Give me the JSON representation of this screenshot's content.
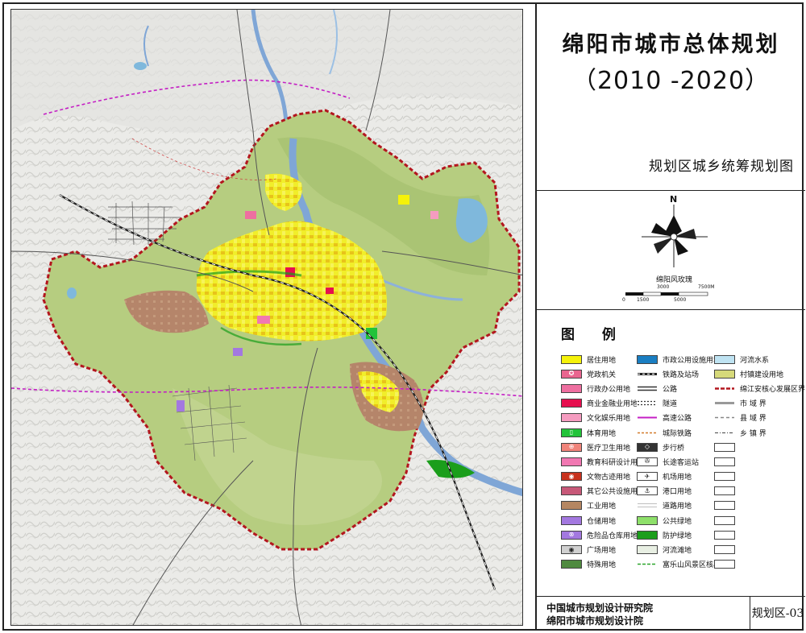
{
  "title": "绵阳市城市总体规划",
  "years": "（2010 -2020）",
  "subtitle": "规划区城乡统筹规划图",
  "north": "N",
  "wind_rose_label": "绵阳风玫瑰",
  "scale_labels": [
    "0",
    "1500",
    "3000",
    "5000",
    "7500M"
  ],
  "legend_title": "图 例",
  "legend": [
    {
      "label": "居住用地",
      "color": "#f5f20a",
      "icon": "fill"
    },
    {
      "label": "党政机关",
      "color": "#e9658f",
      "icon": "star-circle-icon"
    },
    {
      "label": "行政办公用地",
      "color": "#ee6fa0",
      "icon": "fill"
    },
    {
      "label": "商业金融业用地",
      "color": "#e60f4f",
      "icon": "fill"
    },
    {
      "label": "文化娱乐用地",
      "color": "#f59cc0",
      "icon": "fill"
    },
    {
      "label": "体育用地",
      "color": "#22c33a",
      "icon": "stadium-icon"
    },
    {
      "label": "医疗卫生用地",
      "color": "#f0837a",
      "icon": "cross-circle-icon"
    },
    {
      "label": "教育科研设计用地",
      "color": "#f178b2",
      "icon": "fill"
    },
    {
      "label": "文物古迹用地",
      "color": "#c8321e",
      "icon": "heritage-icon"
    },
    {
      "label": "其它公共设施用地",
      "color": "#c75878",
      "icon": "fill"
    },
    {
      "label": "工业用地",
      "color": "#b58661",
      "icon": "fill"
    },
    {
      "label": "仓储用地",
      "color": "#a378e0",
      "icon": "fill"
    },
    {
      "label": "危险品仓库用地",
      "color": "#a378e0",
      "icon": "x-circle-icon"
    },
    {
      "label": "广场用地",
      "color": "#d0d0d0",
      "icon": "dot-circle-icon"
    },
    {
      "label": "特殊用地",
      "color": "#4f8a3f",
      "icon": "fill"
    },
    {
      "label": "市政公用设施用地",
      "color": "#1a7ec2",
      "icon": "fill"
    },
    {
      "label": "铁路及站场",
      "color": "#333333",
      "icon": "railway-icon"
    },
    {
      "label": "公路",
      "color": "#333333",
      "icon": "road-line-icon"
    },
    {
      "label": "隧道",
      "color": "#333333",
      "icon": "tunnel-icon"
    },
    {
      "label": "高速公路",
      "color": "#c41fc4",
      "icon": "expressway-icon"
    },
    {
      "label": "城际铁路",
      "color": "#d27a2a",
      "icon": "intercity-rail-icon"
    },
    {
      "label": "步行桥",
      "color": "#333333",
      "icon": "footbridge-icon"
    },
    {
      "label": "长途客运站",
      "color": "#ffffff",
      "icon": "bus-station-icon"
    },
    {
      "label": "机场用地",
      "color": "#ffffff",
      "icon": "airport-icon"
    },
    {
      "label": "港口用地",
      "color": "#ffffff",
      "icon": "port-icon"
    },
    {
      "label": "道路用地",
      "color": "#ffffff",
      "icon": "road-land-icon"
    },
    {
      "label": "公共绿地",
      "color": "#8ee06a",
      "icon": "fill"
    },
    {
      "label": "防护绿地",
      "color": "#1b9e1b",
      "icon": "fill"
    },
    {
      "label": "河流滩地",
      "color": "#e8efe3",
      "icon": "fill"
    },
    {
      "label": "富乐山风景区核心区界",
      "color": "#2aa52a",
      "icon": "scenic-boundary-icon"
    },
    {
      "label": "河流水系",
      "color": "#bfe3f2",
      "icon": "fill"
    },
    {
      "label": "村镇建设用地",
      "color": "#d6d97a",
      "icon": "fill"
    },
    {
      "label": "绵江安核心发展区界",
      "color": "#b3161e",
      "icon": "core-boundary-icon"
    },
    {
      "label": "市 域 界",
      "color": "#888888",
      "icon": "city-boundary-icon"
    },
    {
      "label": "县 域 界",
      "color": "#888888",
      "icon": "county-boundary-icon"
    },
    {
      "label": "乡 镇 界",
      "color": "#444444",
      "icon": "township-boundary-icon"
    }
  ],
  "org_line1": "中国城市规划设计研究院",
  "org_line2": "绵阳市城市规划设计院",
  "sheet_number": "规划区-03",
  "colors": {
    "terrain": "#e6e7e4",
    "planning_area": "#b8cf82",
    "boundary": "#b3161e",
    "river": "#7fa6d6",
    "residential": "#f5f20a",
    "industrial": "#b58661"
  }
}
